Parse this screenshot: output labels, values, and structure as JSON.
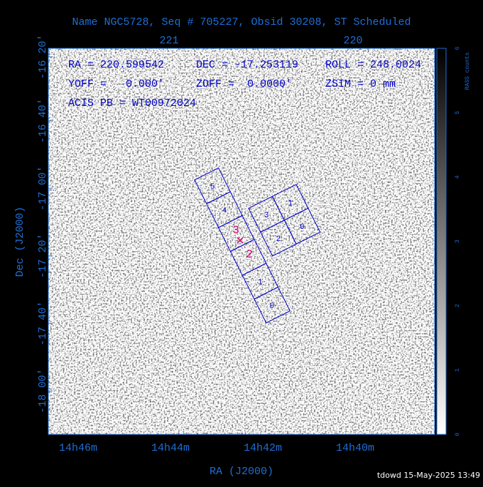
{
  "header": {
    "title": "Name NGC5728, Seq # 705227, Obsid 30208, ST Scheduled"
  },
  "axes": {
    "top_ticks": [
      "221",
      "220"
    ],
    "left_ticks": [
      "-16 20'",
      "-16 40'",
      "-17 00'",
      "-17 20'",
      "-17 40'",
      "-18 00'"
    ],
    "bottom_ticks": [
      "14h46m",
      "14h44m",
      "14h42m",
      "14h40m"
    ],
    "x_label": "RA (J2000)",
    "y_label": "Dec (J2000)"
  },
  "colorbar": {
    "label": "RASS counts",
    "ticks": [
      "0",
      "1",
      "2",
      "3",
      "4",
      "5",
      "6"
    ]
  },
  "info": {
    "ra": "RA = 220.599542",
    "dec": "DEC = -17.253119",
    "roll": "ROLL = 248.0024",
    "yoff": "YOFF =   0.000'",
    "zoff": "ZOFF =  0.0000'",
    "zsim": "ZSIM = 0 mm",
    "acis_pb": "ACIS PB = WT00972024"
  },
  "chips": {
    "s_array": [
      "5",
      "4",
      "",
      "",
      "1",
      "0"
    ],
    "i_array": [
      "3",
      "1",
      "2",
      "0"
    ],
    "aimpoint": [
      "3",
      "2"
    ]
  },
  "footer": "tdowd 15-May-2025 13:49"
}
